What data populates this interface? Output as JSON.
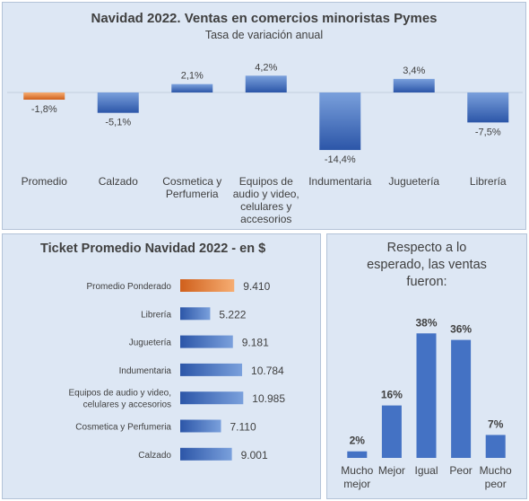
{
  "colors": {
    "panel_bg": "#dde7f4",
    "bar_blue_dark": "#2c56a8",
    "bar_blue_light": "#7aa0dc",
    "bar_orange_dark": "#d0601c",
    "bar_orange_light": "#f6ad72",
    "survey_bar": "#4472c4"
  },
  "chart_data": [
    {
      "type": "bar",
      "title": "Navidad 2022. Ventas en comercios minoristas Pymes",
      "subtitle": "Tasa de variación anual",
      "categories": [
        "Promedio",
        "Calzado",
        "Cosmetica y Perfumeria",
        "Equipos de audio y video, celulares y accesorios",
        "Indumentaria",
        "Juguetería",
        "Librería"
      ],
      "category_lines": [
        [
          "Promedio"
        ],
        [
          "Calzado"
        ],
        [
          "Cosmetica y",
          "Perfumeria"
        ],
        [
          "Equipos de",
          "audio y video,",
          "celulares y",
          "accesorios"
        ],
        [
          "Indumentaria"
        ],
        [
          "Juguetería"
        ],
        [
          "Librería"
        ]
      ],
      "values": [
        -1.8,
        -5.1,
        2.1,
        4.2,
        -14.4,
        3.4,
        -7.5
      ],
      "labels": [
        "-1,8%",
        "-5,1%",
        "2,1%",
        "4,2%",
        "-14,4%",
        "3,4%",
        "-7,5%"
      ],
      "highlight_index": 0,
      "unit": "%",
      "ylim": [
        -15,
        5
      ]
    },
    {
      "type": "bar",
      "orientation": "horizontal",
      "title": "Ticket Promedio Navidad 2022 - en $",
      "categories": [
        "Promedio Ponderado",
        "Librería",
        "Juguetería",
        "Indumentaria",
        "Equipos de audio y video, celulares y accesorios",
        "Cosmetica y Perfumeria",
        "Calzado"
      ],
      "category_lines": [
        [
          "Promedio Ponderado"
        ],
        [
          "Librería"
        ],
        [
          "Juguetería"
        ],
        [
          "Indumentaria"
        ],
        [
          "Equipos de audio y video,",
          "celulares y accesorios"
        ],
        [
          "Cosmetica y Perfumeria"
        ],
        [
          "Calzado"
        ]
      ],
      "values": [
        9410,
        5222,
        9181,
        10784,
        10985,
        7110,
        9001
      ],
      "labels": [
        "9.410",
        "5.222",
        "9.181",
        "10.784",
        "10.985",
        "7.110",
        "9.001"
      ],
      "highlight_index": 0
    },
    {
      "type": "bar",
      "title_lines": [
        "Respecto a lo",
        "esperado, las ventas",
        "fueron:"
      ],
      "categories": [
        "Mucho mejor",
        "Mejor",
        "Igual",
        "Peor",
        "Mucho peor"
      ],
      "category_lines": [
        [
          "Mucho",
          "mejor"
        ],
        [
          "Mejor"
        ],
        [
          "Igual"
        ],
        [
          "Peor"
        ],
        [
          "Mucho",
          "peor"
        ]
      ],
      "values": [
        2,
        16,
        38,
        36,
        7
      ],
      "labels": [
        "2%",
        "16%",
        "38%",
        "36%",
        "7%"
      ],
      "unit": "%"
    }
  ]
}
